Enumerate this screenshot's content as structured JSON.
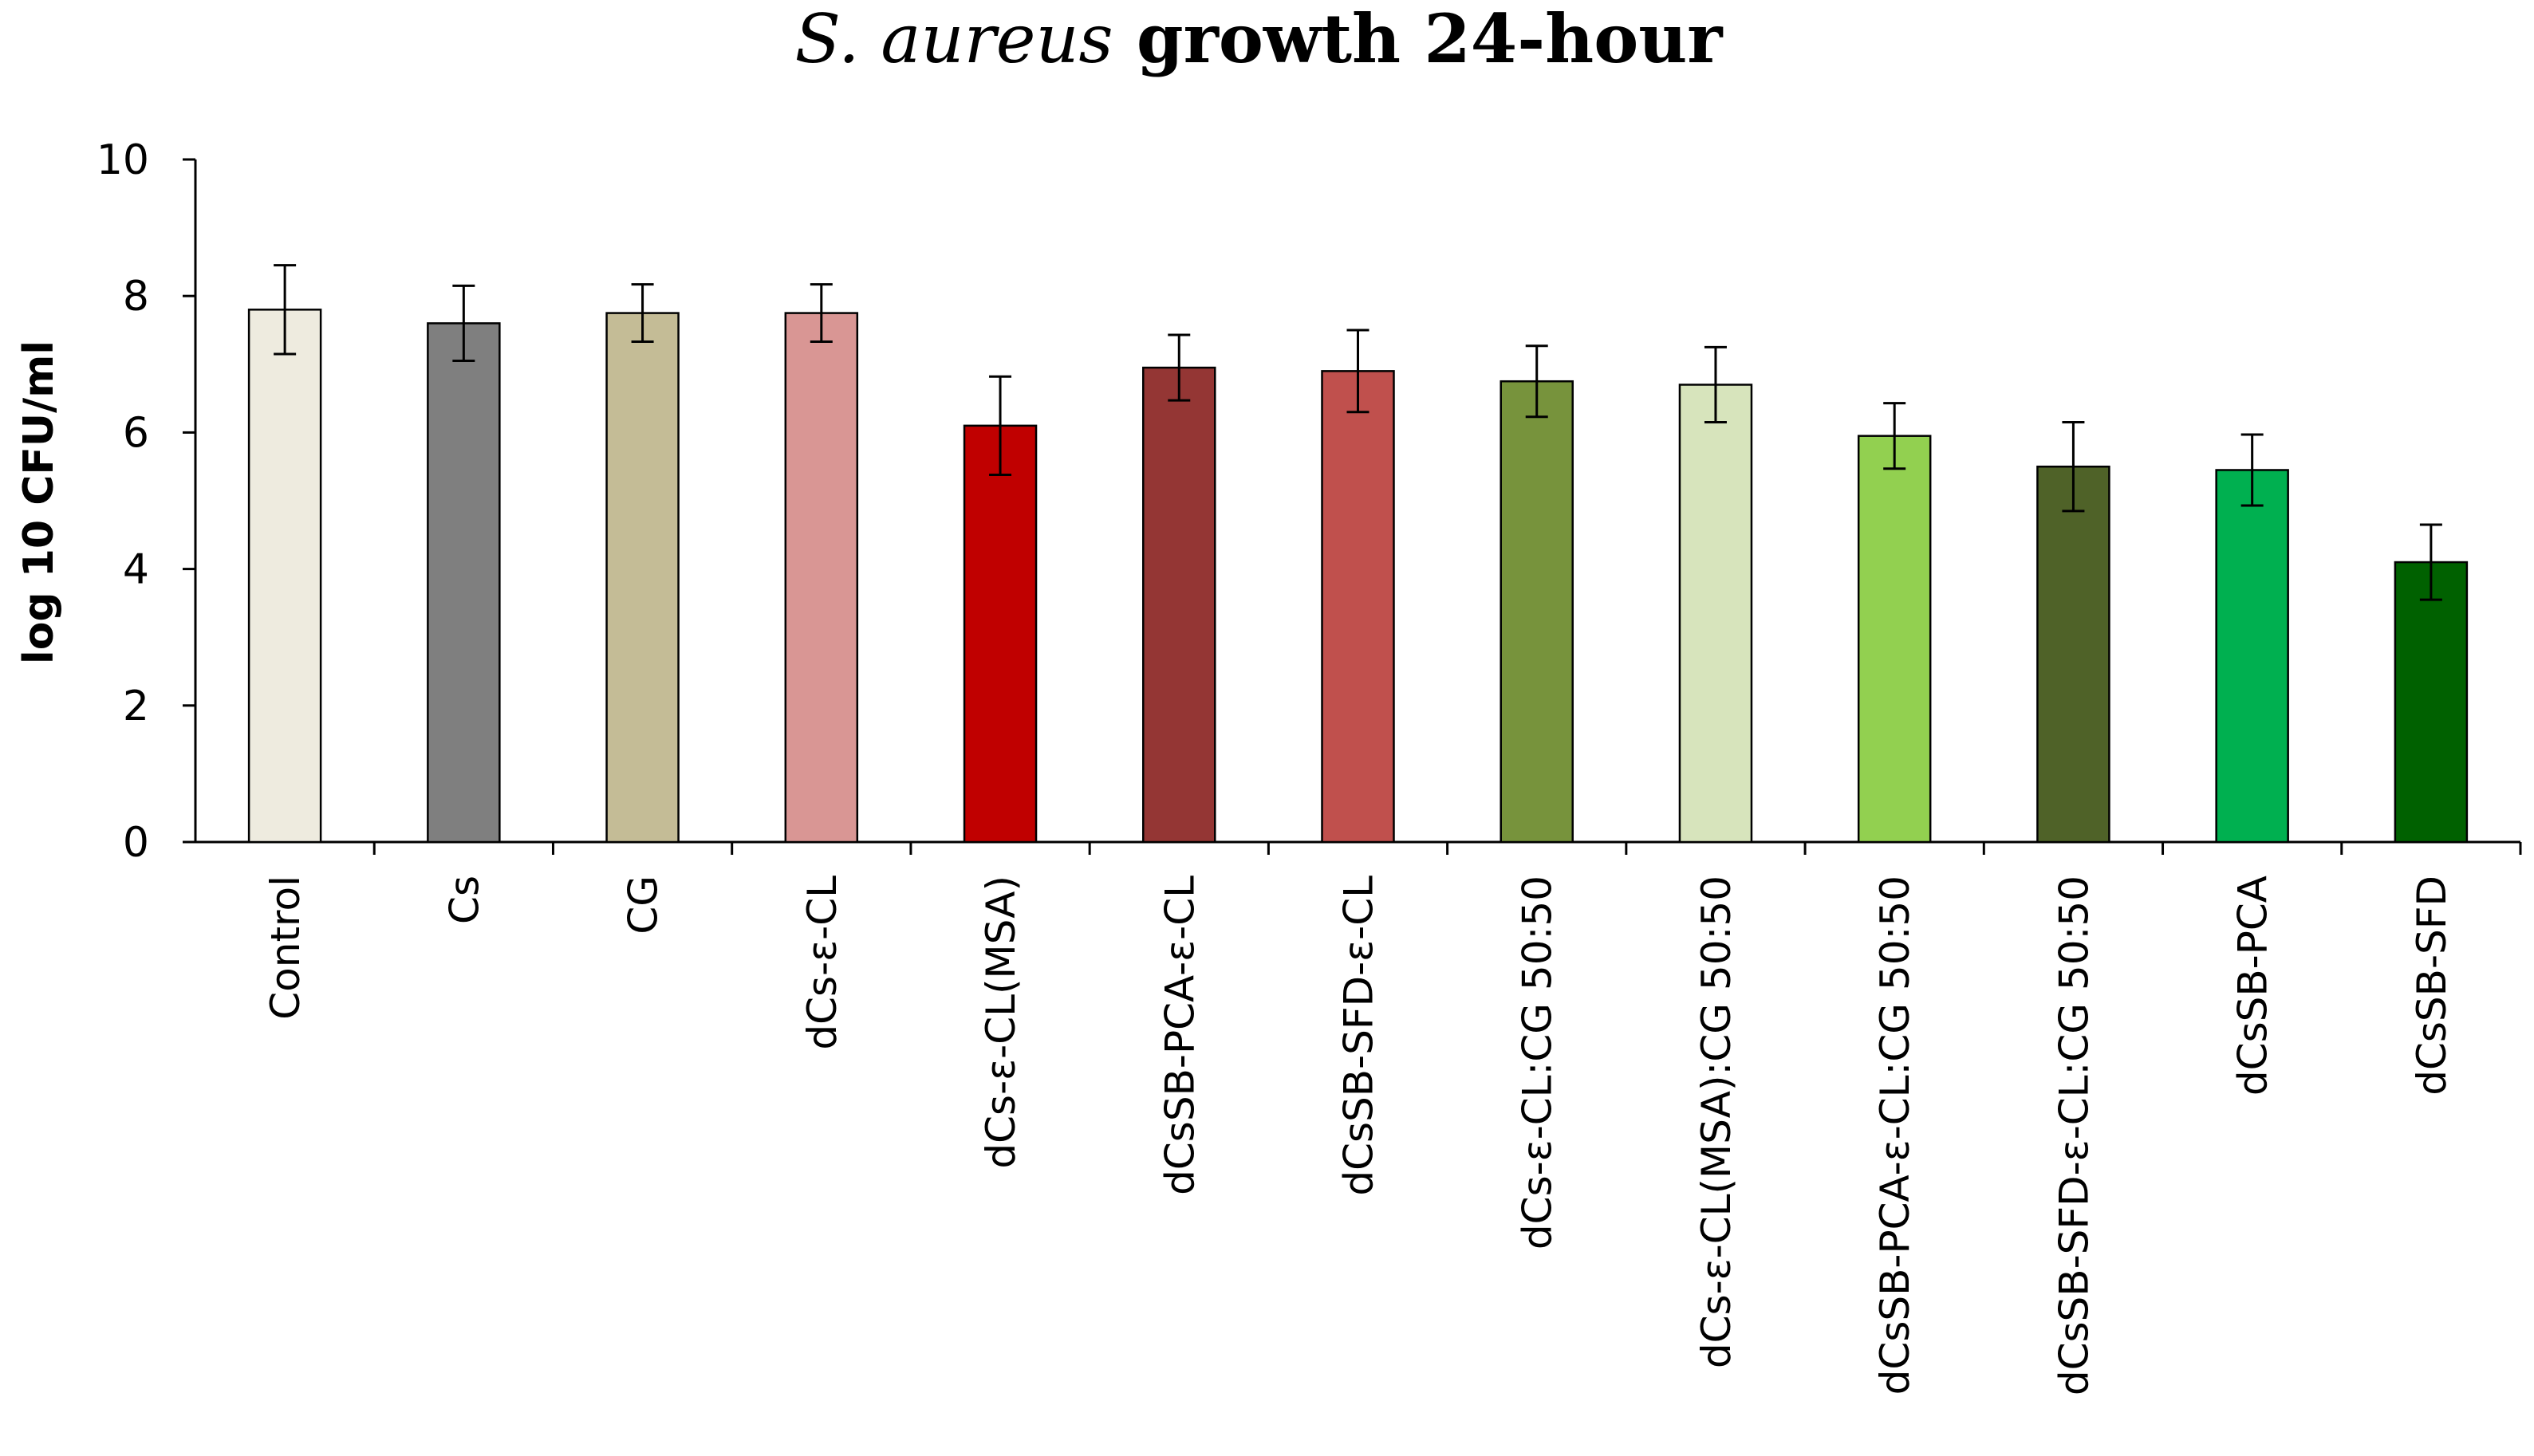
{
  "chart_data": {
    "type": "bar",
    "title_italic": "S. aureus",
    "title_rest": " growth 24-hour",
    "ylabel": "log 10 CFU/ml",
    "xlabel": "",
    "ylim": [
      0,
      10
    ],
    "yticks": [
      0,
      2,
      4,
      6,
      8,
      10
    ],
    "grid": false,
    "legend": "none",
    "categories": [
      "Control",
      "Cs",
      "CG",
      "dCs-ε-CL",
      "dCs-ε-CL(MSA)",
      "dCsSB-PCA-ε-CL",
      "dCsSB-SFD-ε-CL",
      "dCs-ε-CL:CG 50:50",
      "dCs-ε-CL(MSA):CG 50:50",
      "dCsSB-PCA-ε-CL:CG 50:50",
      "dCsSB-SFD-ε-CL:CG 50:50",
      "dCsSB-PCA",
      "dCsSB-SFD"
    ],
    "values": [
      7.8,
      7.6,
      7.75,
      7.75,
      6.1,
      6.95,
      6.9,
      6.75,
      6.7,
      5.95,
      5.5,
      5.45,
      4.1
    ],
    "errors": [
      0.65,
      0.55,
      0.42,
      0.42,
      0.72,
      0.48,
      0.6,
      0.52,
      0.55,
      0.48,
      0.65,
      0.52,
      0.55
    ],
    "colors": [
      "#EEEBDF",
      "#7F7F7F",
      "#C4BC96",
      "#D99694",
      "#C00000",
      "#943634",
      "#C0504D",
      "#77933C",
      "#D7E4BC",
      "#92D050",
      "#4F6228",
      "#00B050",
      "#006100"
    ]
  }
}
